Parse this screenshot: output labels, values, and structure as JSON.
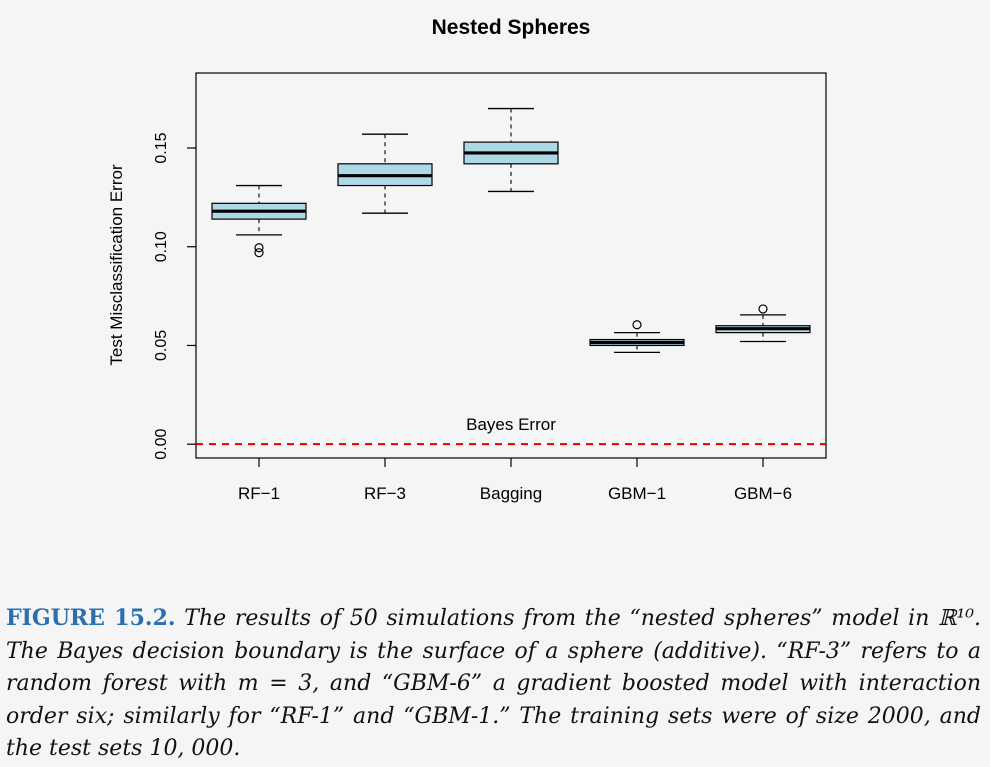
{
  "chart_data": {
    "type": "boxplot",
    "title": "Nested Spheres",
    "xlabel": "",
    "ylabel": "Test Misclassification Error",
    "ylim": [
      -0.007,
      0.188
    ],
    "yticks": [
      0.0,
      0.05,
      0.1,
      0.15
    ],
    "ytick_labels": [
      "0.00",
      "0.05",
      "0.10",
      "0.15"
    ],
    "categories": [
      "RF−1",
      "RF−3",
      "Bagging",
      "GBM−1",
      "GBM−6"
    ],
    "box_color": "#add8e6",
    "boxes": [
      {
        "name": "RF−1",
        "whisker_low": 0.106,
        "q1": 0.114,
        "median": 0.118,
        "q3": 0.122,
        "whisker_high": 0.131,
        "outliers": [
          0.0995,
          0.097
        ]
      },
      {
        "name": "RF−3",
        "whisker_low": 0.117,
        "q1": 0.131,
        "median": 0.136,
        "q3": 0.142,
        "whisker_high": 0.157,
        "outliers": []
      },
      {
        "name": "Bagging",
        "whisker_low": 0.128,
        "q1": 0.142,
        "median": 0.1475,
        "q3": 0.153,
        "whisker_high": 0.17,
        "outliers": []
      },
      {
        "name": "GBM−1",
        "whisker_low": 0.0465,
        "q1": 0.05,
        "median": 0.0515,
        "q3": 0.053,
        "whisker_high": 0.0565,
        "outliers": [
          0.0605
        ]
      },
      {
        "name": "GBM−6",
        "whisker_low": 0.052,
        "q1": 0.0565,
        "median": 0.0585,
        "q3": 0.06,
        "whisker_high": 0.0655,
        "outliers": [
          0.0685
        ]
      }
    ],
    "reference_line": {
      "value": 0.0,
      "label": "Bayes Error",
      "color": "#e00000"
    },
    "grid": false
  },
  "caption": {
    "label": "FIGURE 15.2.",
    "text": "The results of 50 simulations from the “nested spheres” model in ℝ¹⁰. The Bayes decision boundary is the surface of a sphere (additive). “RF-3” refers to a random forest with m = 3, and “GBM-6” a gradient boosted model with interaction order six; similarly for “RF-1” and “GBM-1.” The training sets were of size 2000, and the test sets 10, 000."
  }
}
